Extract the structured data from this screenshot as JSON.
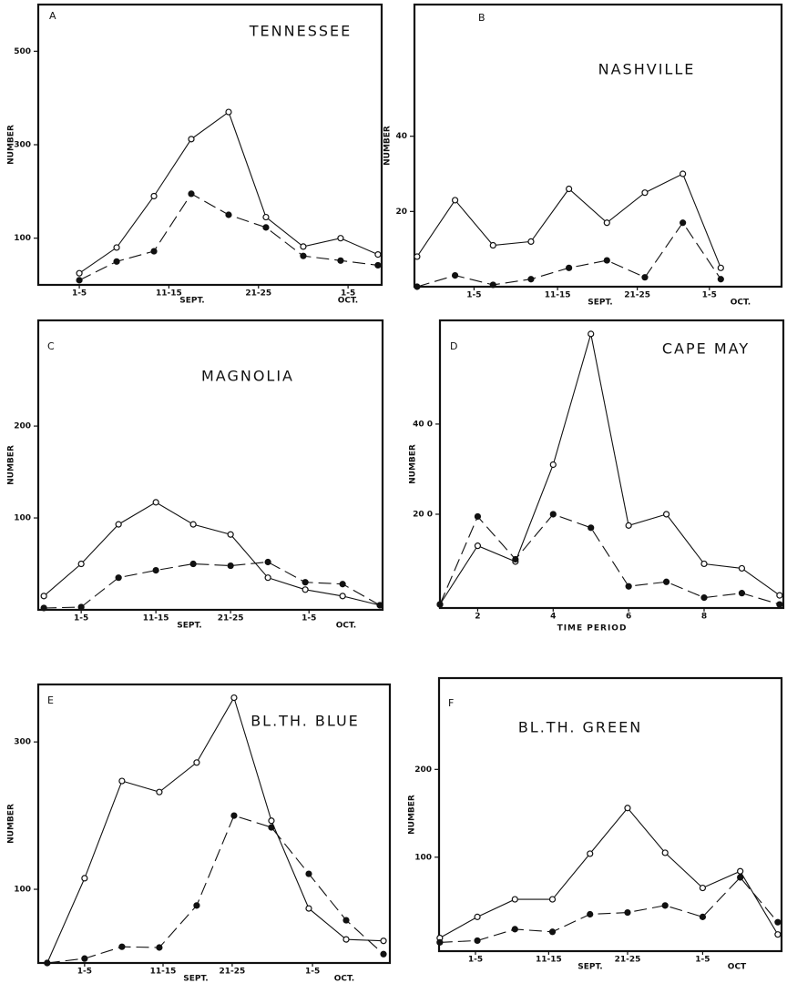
{
  "chart_data": [
    {
      "type": "line",
      "panel_label": "A",
      "title": "TENNESSEE",
      "ylabel": "NUMBER",
      "annotations": [
        "SEPT.",
        "OCT."
      ],
      "x": [
        1,
        2,
        3,
        4,
        5,
        6,
        7,
        8,
        9
      ],
      "xlim": [
        -0.1,
        9.1
      ],
      "xticks": [
        {
          "value": 1,
          "label": "1-5"
        },
        {
          "value": 3.4,
          "label": "11-15"
        },
        {
          "value": 5.8,
          "label": "21-25"
        },
        {
          "value": 8.2,
          "label": "1-5"
        }
      ],
      "ylim": [
        0,
        600
      ],
      "yticks": [
        100,
        300,
        500
      ],
      "series": [
        {
          "color": "#111111",
          "line_style": "solid",
          "marker": "open",
          "values": [
            25,
            80,
            190,
            312,
            370,
            145,
            82,
            100,
            65
          ]
        },
        {
          "color": "#111111",
          "line_style": "dashed",
          "marker": "filled",
          "values": [
            10,
            50,
            72,
            195,
            150,
            123,
            62,
            52,
            42
          ]
        }
      ]
    },
    {
      "type": "line",
      "panel_label": "B",
      "title": "NASHVILLE",
      "ylabel": "NUMBER",
      "annotations": [
        "SEPT.",
        "OCT."
      ],
      "x": [
        1,
        2,
        3,
        4,
        5,
        6,
        7,
        8,
        9
      ],
      "xlim": [
        0.93,
        10.6
      ],
      "xticks": [
        {
          "value": 2.5,
          "label": "1-5"
        },
        {
          "value": 4.7,
          "label": "11-15"
        },
        {
          "value": 6.8,
          "label": "21-25"
        },
        {
          "value": 8.7,
          "label": "1-5"
        }
      ],
      "ylim": [
        0,
        75
      ],
      "yticks": [
        20,
        40
      ],
      "series": [
        {
          "color": "#111111",
          "line_style": "solid",
          "marker": "open",
          "values": [
            8,
            23,
            11,
            12,
            26,
            17,
            25,
            30,
            5
          ]
        },
        {
          "color": "#111111",
          "line_style": "dashed",
          "marker": "filled",
          "values": [
            0,
            3,
            0.5,
            2,
            5,
            7,
            2.5,
            17,
            2
          ]
        }
      ]
    },
    {
      "type": "line",
      "panel_label": "C",
      "title": "MAGNOLIA",
      "ylabel": "NUMBER",
      "annotations": [
        "SEPT.",
        "OCT."
      ],
      "x": [
        1,
        2,
        3,
        4,
        5,
        6,
        7,
        8,
        9,
        10
      ],
      "xlim": [
        0.85,
        10.07
      ],
      "xticks": [
        {
          "value": 2,
          "label": "1-5"
        },
        {
          "value": 4,
          "label": "11-15"
        },
        {
          "value": 6,
          "label": "21-25"
        },
        {
          "value": 8.1,
          "label": "1-5"
        }
      ],
      "ylim": [
        0,
        315
      ],
      "yticks": [
        100,
        200
      ],
      "series": [
        {
          "color": "#111111",
          "line_style": "solid",
          "marker": "open",
          "values": [
            15,
            50,
            93,
            117,
            93,
            82,
            35,
            22,
            15,
            5
          ]
        },
        {
          "color": "#111111",
          "line_style": "dashed",
          "marker": "filled",
          "values": [
            2,
            3,
            35,
            43,
            50,
            48,
            52,
            30,
            28,
            5
          ]
        }
      ]
    },
    {
      "type": "line",
      "panel_label": "D",
      "title": "CAPE MAY",
      "ylabel": "NUMBER",
      "xlabel": "TIME PERIOD",
      "x": [
        1,
        2,
        3,
        4,
        5,
        6,
        7,
        8,
        9,
        10
      ],
      "xlim": [
        1,
        10.1
      ],
      "xticks": [
        2,
        4,
        6,
        8
      ],
      "ylim": [
        -8,
        630
      ],
      "yticks": [
        {
          "value": 200,
          "label": "20 0"
        },
        {
          "value": 400,
          "label": "40 0"
        }
      ],
      "series": [
        {
          "color": "#111111",
          "line_style": "solid",
          "marker": "open",
          "values": [
            0,
            130,
            95,
            310,
            600,
            175,
            200,
            90,
            80,
            20
          ]
        },
        {
          "color": "#111111",
          "line_style": "dashed",
          "marker": "filled",
          "values": [
            0,
            195,
            100,
            200,
            170,
            40,
            50,
            15,
            25,
            0
          ]
        }
      ]
    },
    {
      "type": "line",
      "panel_label": "E",
      "title": "BL.TH. BLUE",
      "ylabel": "NUMBER",
      "annotations": [
        "SEPT.",
        "OCT."
      ],
      "x": [
        1,
        2,
        3,
        4,
        5,
        6,
        7,
        8,
        9,
        10
      ],
      "xlim": [
        0.76,
        10.17
      ],
      "xticks": [
        {
          "value": 2,
          "label": "1-5"
        },
        {
          "value": 4.1,
          "label": "11-15"
        },
        {
          "value": 5.95,
          "label": "21-25"
        },
        {
          "value": 8.1,
          "label": "1-5"
        }
      ],
      "ylim": [
        0,
        378
      ],
      "yticks": [
        100,
        300
      ],
      "series": [
        {
          "color": "#111111",
          "line_style": "solid",
          "marker": "open",
          "values": [
            0,
            115,
            247,
            232,
            272,
            360,
            193,
            74,
            32,
            30
          ]
        },
        {
          "color": "#111111",
          "line_style": "dashed",
          "marker": "filled",
          "values": [
            0,
            6,
            22,
            21,
            78,
            200,
            184,
            121,
            58,
            12
          ]
        }
      ]
    },
    {
      "type": "line",
      "panel_label": "F",
      "title": "BL.TH. GREEN",
      "ylabel": "NUMBER",
      "annotations": [
        "SEPT.",
        "OCT"
      ],
      "x": [
        1,
        2,
        3,
        4,
        5,
        6,
        7,
        8,
        9,
        10
      ],
      "xlim": [
        0.98,
        10.1
      ],
      "xticks": [
        {
          "value": 1.95,
          "label": "1-5"
        },
        {
          "value": 3.9,
          "label": "11-15"
        },
        {
          "value": 6,
          "label": "21-25"
        },
        {
          "value": 8,
          "label": "1-5"
        }
      ],
      "ylim": [
        -7,
        304
      ],
      "yticks": [
        100,
        200
      ],
      "series": [
        {
          "color": "#111111",
          "line_style": "solid",
          "marker": "open",
          "values": [
            8,
            32,
            52,
            52,
            104,
            156,
            105,
            65,
            84,
            12
          ]
        },
        {
          "color": "#111111",
          "line_style": "dashed",
          "marker": "filled",
          "values": [
            3,
            5,
            18,
            15,
            35,
            37,
            45,
            32,
            77,
            26
          ]
        }
      ]
    }
  ]
}
